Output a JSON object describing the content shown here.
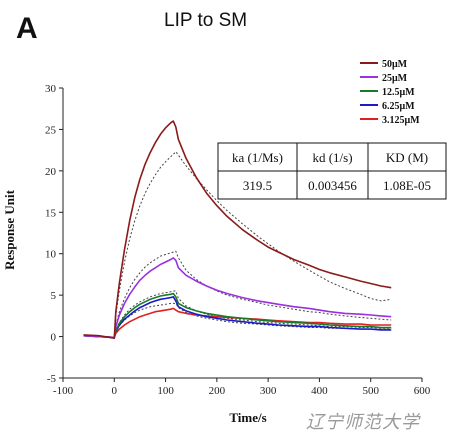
{
  "panel": {
    "letter": "A",
    "title": "LIP to SM"
  },
  "watermark": "辽宁师范大学",
  "chart_data": {
    "type": "line",
    "title": "LIP to SM",
    "xlabel": "Time/s",
    "ylabel": "Response Unit",
    "xlim": [
      -100,
      600
    ],
    "ylim": [
      -5,
      30
    ],
    "xticks": [
      -100,
      0,
      100,
      200,
      300,
      400,
      500,
      600
    ],
    "yticks": [
      -5,
      0,
      5,
      10,
      15,
      20,
      25,
      30
    ],
    "grid": false,
    "legend_position": "top-right",
    "x": [
      -60,
      -30,
      0,
      3,
      10,
      20,
      30,
      40,
      50,
      60,
      70,
      80,
      90,
      100,
      110,
      115,
      120,
      125,
      140,
      160,
      180,
      200,
      220,
      250,
      280,
      300,
      320,
      350,
      380,
      400,
      420,
      450,
      480,
      500,
      520,
      540
    ],
    "series": [
      {
        "name": "50μM",
        "color": "#8b1a1a",
        "values": [
          0.2,
          0.1,
          -0.2,
          3.0,
          6.5,
          10.5,
          14.0,
          16.8,
          19.0,
          20.8,
          22.2,
          23.4,
          24.4,
          25.2,
          25.8,
          26.0,
          25.3,
          23.8,
          21.5,
          19.2,
          17.3,
          15.8,
          14.5,
          12.9,
          11.6,
          10.8,
          10.2,
          9.3,
          8.6,
          8.1,
          7.7,
          7.2,
          6.7,
          6.4,
          6.1,
          5.9
        ]
      },
      {
        "name": "25μM",
        "color": "#9a30e0",
        "values": [
          0.1,
          0.0,
          -0.1,
          1.2,
          2.6,
          4.0,
          5.1,
          6.0,
          6.8,
          7.4,
          7.9,
          8.3,
          8.7,
          9.0,
          9.3,
          9.5,
          9.2,
          8.3,
          7.4,
          6.7,
          6.1,
          5.6,
          5.2,
          4.7,
          4.3,
          4.1,
          3.9,
          3.6,
          3.4,
          3.2,
          3.0,
          2.8,
          2.7,
          2.6,
          2.5,
          2.4
        ]
      },
      {
        "name": "12.5μM",
        "color": "#1a7a2a",
        "values": [
          0.1,
          0.0,
          -0.1,
          0.7,
          1.6,
          2.4,
          3.0,
          3.5,
          3.9,
          4.2,
          4.5,
          4.7,
          4.9,
          5.0,
          5.1,
          5.2,
          4.8,
          4.0,
          3.5,
          3.1,
          2.8,
          2.6,
          2.4,
          2.2,
          2.0,
          1.9,
          1.8,
          1.7,
          1.6,
          1.5,
          1.4,
          1.3,
          1.2,
          1.2,
          1.1,
          1.1
        ]
      },
      {
        "name": "6.25μM",
        "color": "#1a1ac8",
        "values": [
          0.1,
          0.0,
          -0.1,
          0.6,
          1.4,
          2.1,
          2.6,
          3.1,
          3.5,
          3.8,
          4.1,
          4.3,
          4.5,
          4.6,
          4.7,
          4.8,
          4.3,
          3.6,
          3.1,
          2.7,
          2.4,
          2.2,
          2.0,
          1.8,
          1.6,
          1.5,
          1.4,
          1.3,
          1.2,
          1.2,
          1.1,
          1.0,
          0.9,
          0.9,
          0.8,
          0.8
        ]
      },
      {
        "name": "3.125μM",
        "color": "#e02020",
        "values": [
          0.1,
          0.0,
          -0.1,
          0.4,
          0.9,
          1.4,
          1.8,
          2.1,
          2.4,
          2.6,
          2.8,
          3.0,
          3.1,
          3.2,
          3.3,
          3.4,
          3.2,
          3.0,
          2.8,
          2.6,
          2.5,
          2.4,
          2.3,
          2.2,
          2.1,
          2.0,
          1.9,
          1.8,
          1.7,
          1.7,
          1.6,
          1.5,
          1.5,
          1.4,
          1.4,
          1.4
        ]
      }
    ],
    "fit_series": [
      {
        "values": [
          null,
          null,
          0.0,
          2.5,
          5.6,
          9.0,
          11.8,
          14.0,
          15.8,
          17.3,
          18.5,
          19.5,
          20.4,
          21.1,
          21.7,
          22.0,
          22.3,
          21.9,
          20.6,
          19.1,
          17.7,
          16.4,
          15.2,
          13.6,
          12.1,
          11.2,
          10.3,
          9.1,
          8.0,
          7.3,
          6.6,
          5.8,
          5.1,
          4.6,
          4.3,
          4.5
        ]
      },
      {
        "values": [
          null,
          null,
          0.0,
          1.4,
          3.0,
          4.6,
          5.9,
          6.9,
          7.7,
          8.4,
          8.9,
          9.3,
          9.7,
          9.9,
          10.1,
          10.2,
          10.3,
          9.5,
          8.0,
          6.9,
          6.1,
          5.5,
          5.0,
          4.5,
          4.1,
          3.8,
          3.6,
          3.3,
          3.0,
          2.9,
          2.7,
          2.5,
          2.3,
          2.2,
          2.1,
          2.0
        ]
      },
      {
        "values": [
          null,
          null,
          0.0,
          0.8,
          1.7,
          2.6,
          3.3,
          3.8,
          4.2,
          4.5,
          4.8,
          5.0,
          5.2,
          5.3,
          5.4,
          5.5,
          5.5,
          4.6,
          3.7,
          3.1,
          2.7,
          2.4,
          2.2,
          2.0,
          1.8,
          1.7,
          1.6,
          1.5,
          1.4,
          1.3,
          1.2,
          1.2,
          1.1,
          1.1,
          1.0,
          1.0
        ]
      },
      {
        "values": [
          null,
          null,
          0.0,
          0.6,
          1.3,
          2.0,
          2.5,
          2.9,
          3.2,
          3.4,
          3.6,
          3.7,
          3.8,
          3.9,
          4.0,
          4.0,
          4.0,
          3.5,
          2.9,
          2.5,
          2.2,
          2.0,
          1.8,
          1.6,
          1.5,
          1.4,
          1.3,
          1.2,
          1.1,
          1.1,
          1.0,
          1.0,
          0.9,
          0.9,
          0.9,
          0.9
        ]
      }
    ],
    "table": {
      "headers": [
        "ka (1/Ms)",
        "kd (1/s)",
        "KD (M)"
      ],
      "values": [
        "319.5",
        "0.003456",
        "1.08E-05"
      ]
    }
  }
}
